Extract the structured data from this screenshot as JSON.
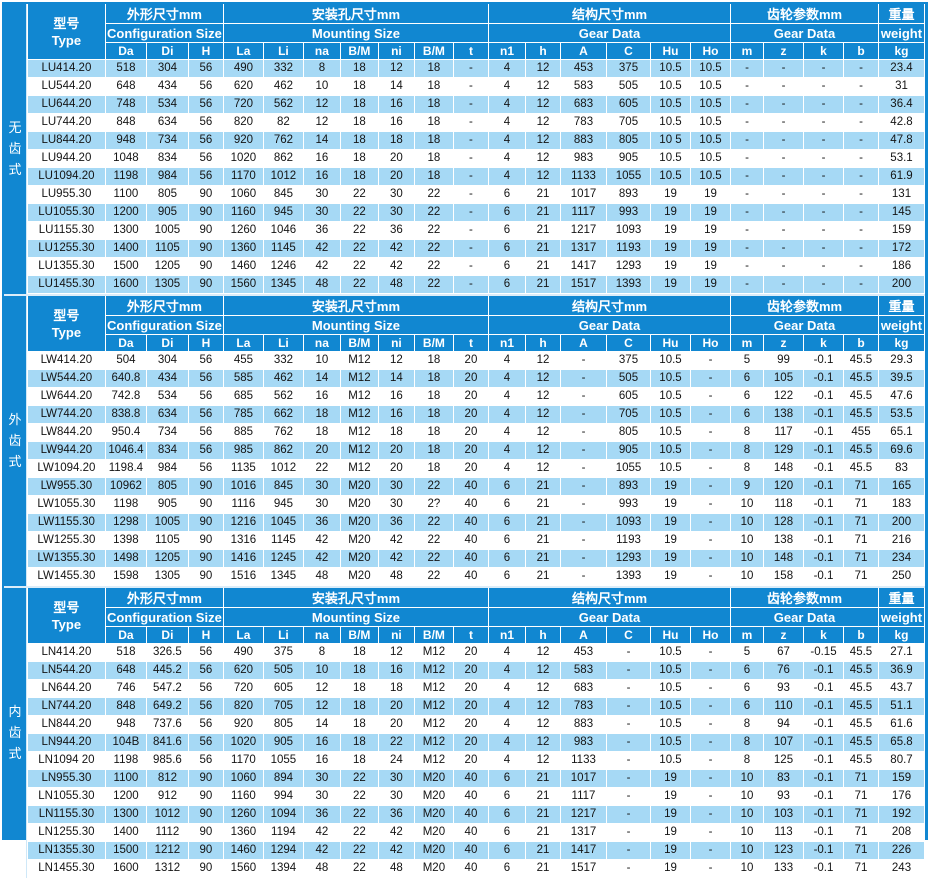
{
  "colors": {
    "header_blue": "#1187d1",
    "row_highlight": "#a6d9f5",
    "row_plain": "#ffffff",
    "header_text": "#ffffff",
    "cell_text": "#141414"
  },
  "table": {
    "header": {
      "type": {
        "cn": "型号",
        "en": "Type"
      },
      "groups": [
        {
          "id": "configuration",
          "cn": "外形尺寸mm",
          "en": "Configuration Size",
          "cols": [
            "Da",
            "Di",
            "H"
          ]
        },
        {
          "id": "mounting",
          "cn": "安装孔尺寸mm",
          "en": "Mounting Size",
          "cols": [
            "La",
            "Li",
            "na",
            "B/M",
            "ni",
            "B/M",
            "t"
          ]
        },
        {
          "id": "structure",
          "cn": "结构尺寸mm",
          "en": "Gear Data",
          "cols": [
            "n1",
            "h",
            "A",
            "C",
            "Hu",
            "Ho"
          ]
        },
        {
          "id": "gear",
          "cn": "齿轮参数mm",
          "en": "Gear Data",
          "cols": [
            "m",
            "z",
            "k",
            "b"
          ]
        }
      ],
      "weight": {
        "cn": "重量",
        "en": "weight",
        "unit": "kg"
      }
    },
    "sections": [
      {
        "key": "gearless",
        "side_label": "无齿式",
        "first_row_shaded": true,
        "rows": [
          [
            "LU414.20",
            "518",
            "304",
            "56",
            "490",
            "332",
            "8",
            "18",
            "12",
            "18",
            "-",
            "4",
            "12",
            "453",
            "375",
            "10.5",
            "10.5",
            "-",
            "-",
            "-",
            "-",
            "23.4"
          ],
          [
            "LU544.20",
            "648",
            "434",
            "56",
            "620",
            "462",
            "10",
            "18",
            "14",
            "18",
            "-",
            "4",
            "12",
            "583",
            "505",
            "10.5",
            "10.5",
            "-",
            "-",
            "-",
            "-",
            "31"
          ],
          [
            "LU644.20",
            "748",
            "534",
            "56",
            "720",
            "562",
            "12",
            "18",
            "16",
            "18",
            "-",
            "4",
            "12",
            "683",
            "605",
            "10.5",
            "10.5",
            "-",
            "-",
            "-",
            "-",
            "36.4"
          ],
          [
            "LU744.20",
            "848",
            "634",
            "56",
            "820",
            "82",
            "12",
            "18",
            "16",
            "18",
            "-",
            "4",
            "12",
            "783",
            "705",
            "10.5",
            "10.5",
            "-",
            "-",
            "-",
            "-",
            "42.8"
          ],
          [
            "LU844.20",
            "948",
            "734",
            "56",
            "920",
            "762",
            "14",
            "18",
            "18",
            "18",
            "-",
            "4",
            "12",
            "883",
            "805",
            "10 5",
            "10.5",
            "-",
            "-",
            "-",
            "-",
            "47.8"
          ],
          [
            "LU944.20",
            "1048",
            "834",
            "56",
            "1020",
            "862",
            "16",
            "18",
            "20",
            "18",
            "-",
            "4",
            "12",
            "983",
            "905",
            "10.5",
            "10.5",
            "-",
            "-",
            "-",
            "-",
            "53.1"
          ],
          [
            "LU1094.20",
            "1198",
            "984",
            "56",
            "1170",
            "1012",
            "16",
            "18",
            "20",
            "18",
            "-",
            "4",
            "12",
            "1133",
            "1055",
            "10.5",
            "10.5",
            "-",
            "-",
            "-",
            "-",
            "61.9"
          ],
          [
            "LU955.30",
            "1100",
            "805",
            "90",
            "1060",
            "845",
            "30",
            "22",
            "30",
            "22",
            "-",
            "6",
            "21",
            "1017",
            "893",
            "19",
            "19",
            "-",
            "-",
            "-",
            "-",
            "131"
          ],
          [
            "LU1055.30",
            "1200",
            "905",
            "90",
            "1160",
            "945",
            "30",
            "22",
            "30",
            "22",
            "-",
            "6",
            "21",
            "1117",
            "993",
            "19",
            "19",
            "-",
            "-",
            "-",
            "-",
            "145"
          ],
          [
            "LU1155.30",
            "1300",
            "1005",
            "90",
            "1260",
            "1046",
            "36",
            "22",
            "36",
            "22",
            "-",
            "6",
            "21",
            "1217",
            "1093",
            "19",
            "19",
            "-",
            "-",
            "-",
            "-",
            "159"
          ],
          [
            "LU1255.30",
            "1400",
            "1105",
            "90",
            "1360",
            "1145",
            "42",
            "22",
            "42",
            "22",
            "-",
            "6",
            "21",
            "1317",
            "1193",
            "19",
            "19",
            "-",
            "-",
            "-",
            "-",
            "172"
          ],
          [
            "LU1355.30",
            "1500",
            "1205",
            "90",
            "1460",
            "1246",
            "42",
            "22",
            "42",
            "22",
            "-",
            "6",
            "21",
            "1417",
            "1293",
            "19",
            "19",
            "-",
            "-",
            "-",
            "-",
            "186"
          ],
          [
            "LU1455.30",
            "1600",
            "1305",
            "90",
            "1560",
            "1345",
            "48",
            "22",
            "48",
            "22",
            "-",
            "6",
            "21",
            "1517",
            "1393",
            "19",
            "19",
            "-",
            "-",
            "-",
            "-",
            "200"
          ]
        ]
      },
      {
        "key": "external-gear",
        "side_label": "外齿式",
        "first_row_shaded": false,
        "rows": [
          [
            "LW414.20",
            "504",
            "304",
            "56",
            "455",
            "332",
            "10",
            "M12",
            "12",
            "18",
            "20",
            "4",
            "12",
            "-",
            "375",
            "10.5",
            "-",
            "5",
            "99",
            "-0.1",
            "45.5",
            "29.3"
          ],
          [
            "LW544.20",
            "640.8",
            "434",
            "56",
            "585",
            "462",
            "14",
            "M12",
            "14",
            "18",
            "20",
            "4",
            "12",
            "-",
            "505",
            "10.5",
            "-",
            "6",
            "105",
            "-0.1",
            "45.5",
            "39.5"
          ],
          [
            "LW644.20",
            "742.8",
            "534",
            "56",
            "685",
            "562",
            "16",
            "M12",
            "16",
            "18",
            "20",
            "4",
            "12",
            "-",
            "605",
            "10.5",
            "-",
            "6",
            "122",
            "-0.1",
            "45.5",
            "47.6"
          ],
          [
            "LW744.20",
            "838.8",
            "634",
            "56",
            "785",
            "662",
            "18",
            "M12",
            "16",
            "18",
            "20",
            "4",
            "12",
            "-",
            "705",
            "10.5",
            "-",
            "6",
            "138",
            "-0.1",
            "45.5",
            "53.5"
          ],
          [
            "LW844.20",
            "950.4",
            "734",
            "56",
            "885",
            "762",
            "18",
            "M12",
            "18",
            "18",
            "20",
            "4",
            "12",
            "-",
            "805",
            "10.5",
            "-",
            "8",
            "117",
            "-0.1",
            "455",
            "65.1"
          ],
          [
            "LW944.20",
            "1046.4",
            "834",
            "56",
            "985",
            "862",
            "20",
            "M12",
            "20",
            "18",
            "20",
            "4",
            "12",
            "-",
            "905",
            "10.5",
            "-",
            "8",
            "129",
            "-0.1",
            "45.5",
            "69.6"
          ],
          [
            "LW1094.20",
            "1198.4",
            "984",
            "56",
            "1135",
            "1012",
            "22",
            "M12",
            "20",
            "18",
            "20",
            "4",
            "12",
            "-",
            "1055",
            "10.5",
            "-",
            "8",
            "148",
            "-0.1",
            "45.5",
            "83"
          ],
          [
            "LW955.30",
            "10962",
            "805",
            "90",
            "1016",
            "845",
            "30",
            "M20",
            "30",
            "22",
            "40",
            "6",
            "21",
            "-",
            "893",
            "19",
            "-",
            "9",
            "120",
            "-0.1",
            "71",
            "165"
          ],
          [
            "LW1055.30",
            "1198",
            "905",
            "90",
            "1116",
            "945",
            "30",
            "M20",
            "30",
            "2?",
            "40",
            "6",
            "21",
            "-",
            "993",
            "19",
            "-",
            "10",
            "118",
            "-0.1",
            "71",
            "183"
          ],
          [
            "LW1155.30",
            "1298",
            "1005",
            "90",
            "1216",
            "1045",
            "36",
            "M20",
            "36",
            "22",
            "40",
            "6",
            "21",
            "-",
            "1093",
            "19",
            "-",
            "10",
            "128",
            "-0.1",
            "71",
            "200"
          ],
          [
            "LW1255.30",
            "1398",
            "1105",
            "90",
            "1316",
            "1145",
            "42",
            "M20",
            "42",
            "22",
            "40",
            "6",
            "21",
            "-",
            "1193",
            "19",
            "-",
            "10",
            "138",
            "-0.1",
            "71",
            "216"
          ],
          [
            "LW1355.30",
            "1498",
            "1205",
            "90",
            "1416",
            "1245",
            "42",
            "M20",
            "42",
            "22",
            "40",
            "6",
            "21",
            "-",
            "1293",
            "19",
            "-",
            "10",
            "148",
            "-0.1",
            "71",
            "234"
          ],
          [
            "LW1455.30",
            "1598",
            "1305",
            "90",
            "1516",
            "1345",
            "48",
            "M20",
            "48",
            "22",
            "40",
            "6",
            "21",
            "-",
            "1393",
            "19",
            "-",
            "10",
            "158",
            "-0.1",
            "71",
            "250"
          ]
        ]
      },
      {
        "key": "internal-gear",
        "side_label": "内齿式",
        "first_row_shaded": false,
        "rows": [
          [
            "LN414.20",
            "518",
            "326.5",
            "56",
            "490",
            "375",
            "8",
            "18",
            "12",
            "M12",
            "20",
            "4",
            "12",
            "453",
            "-",
            "10.5",
            "-",
            "5",
            "67",
            "-0.15",
            "45.5",
            "27.1"
          ],
          [
            "LN544.20",
            "648",
            "445.2",
            "56",
            "620",
            "505",
            "10",
            "18",
            "16",
            "M12",
            "20",
            "4",
            "12",
            "583",
            "-",
            "10.5",
            "-",
            "6",
            "76",
            "-0.1",
            "45.5",
            "36.9"
          ],
          [
            "LN644.20",
            "746",
            "547.2",
            "56",
            "720",
            "605",
            "12",
            "18",
            "18",
            "M12",
            "20",
            "4",
            "12",
            "683",
            "-",
            "10.5",
            "-",
            "6",
            "93",
            "-0.1",
            "45.5",
            "43.7"
          ],
          [
            "LN744.20",
            "848",
            "649.2",
            "56",
            "820",
            "705",
            "12",
            "18",
            "20",
            "M12",
            "20",
            "4",
            "12",
            "783",
            "-",
            "10.5",
            "-",
            "6",
            "110",
            "-0.1",
            "45.5",
            "51.1"
          ],
          [
            "LN844.20",
            "948",
            "737.6",
            "56",
            "920",
            "805",
            "14",
            "18",
            "20",
            "M12",
            "20",
            "4",
            "12",
            "883",
            "-",
            "10.5",
            "-",
            "8",
            "94",
            "-0.1",
            "45.5",
            "61.6"
          ],
          [
            "LN944.20",
            "104B",
            "841.6",
            "56",
            "1020",
            "905",
            "16",
            "18",
            "22",
            "M12",
            "20",
            "4",
            "12",
            "983",
            "-",
            "10.5",
            "-",
            "8",
            "107",
            "-0.1",
            "45.5",
            "65.8"
          ],
          [
            "LN1094 20",
            "1198",
            "985.6",
            "56",
            "1170",
            "1055",
            "16",
            "18",
            "24",
            "M12",
            "20",
            "4",
            "12",
            "1133",
            "-",
            "10.5",
            "-",
            "8",
            "125",
            "-0.1",
            "45.5",
            "80.7"
          ],
          [
            "LN955.30",
            "1100",
            "812",
            "90",
            "1060",
            "894",
            "30",
            "22",
            "30",
            "M20",
            "40",
            "6",
            "21",
            "1017",
            "-",
            "19",
            "-",
            "10",
            "83",
            "-0.1",
            "71",
            "159"
          ],
          [
            "LN1055.30",
            "1200",
            "912",
            "90",
            "1160",
            "994",
            "30",
            "22",
            "30",
            "M20",
            "40",
            "6",
            "21",
            "1117",
            "-",
            "19",
            "-",
            "10",
            "93",
            "-0.1",
            "71",
            "176"
          ],
          [
            "LN1155.30",
            "1300",
            "1012",
            "90",
            "1260",
            "1094",
            "36",
            "22",
            "36",
            "M20",
            "40",
            "6",
            "21",
            "1217",
            "-",
            "19",
            "-",
            "10",
            "103",
            "-0.1",
            "71",
            "192"
          ],
          [
            "LN1255.30",
            "1400",
            "1112",
            "90",
            "1360",
            "1194",
            "42",
            "22",
            "42",
            "M20",
            "40",
            "6",
            "21",
            "1317",
            "-",
            "19",
            "-",
            "10",
            "113",
            "-0.1",
            "71",
            "208"
          ],
          [
            "LN1355.30",
            "1500",
            "1212",
            "90",
            "1460",
            "1294",
            "42",
            "22",
            "42",
            "M20",
            "40",
            "6",
            "21",
            "1417",
            "-",
            "19",
            "-",
            "10",
            "123",
            "-0.1",
            "71",
            "226"
          ],
          [
            "LN1455.30",
            "1600",
            "1312",
            "90",
            "1560",
            "1394",
            "48",
            "22",
            "48",
            "M20",
            "40",
            "6",
            "21",
            "1517",
            "-",
            "19",
            "-",
            "10",
            "133",
            "-0.1",
            "71",
            "243"
          ]
        ]
      }
    ]
  }
}
